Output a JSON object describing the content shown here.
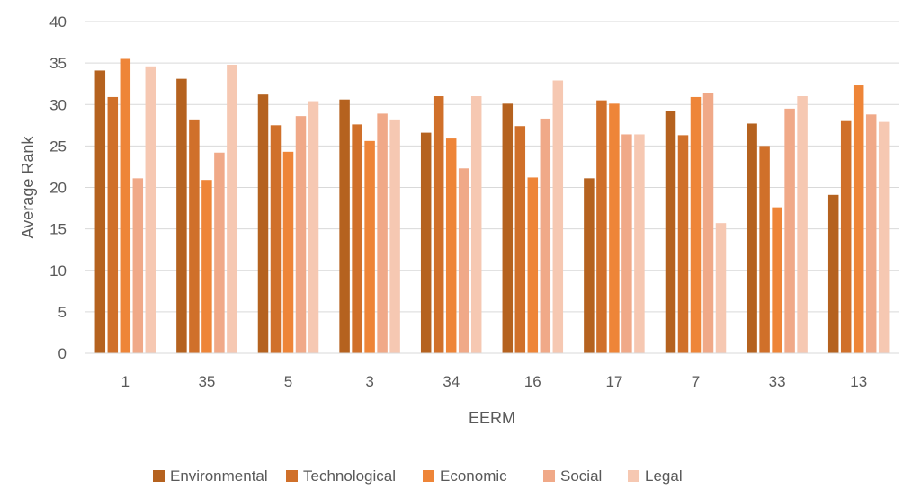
{
  "chart_data": {
    "type": "bar",
    "title": "",
    "xlabel": "EERM",
    "ylabel": "Average Rank",
    "categories": [
      "1",
      "35",
      "5",
      "3",
      "34",
      "16",
      "17",
      "7",
      "33",
      "13"
    ],
    "ylim": [
      0,
      40
    ],
    "yticks": [
      "0",
      "5",
      "10",
      "15",
      "20",
      "25",
      "30",
      "35",
      "40"
    ],
    "grid": true,
    "legend_position": "bottom",
    "series": [
      {
        "name": "Environmental",
        "color": "#B5621F",
        "values": [
          34.1,
          33.1,
          31.2,
          30.6,
          26.6,
          30.1,
          21.1,
          29.2,
          27.7,
          19.1
        ]
      },
      {
        "name": "Technological",
        "color": "#D0702A",
        "values": [
          30.9,
          28.2,
          27.5,
          27.6,
          31.0,
          27.4,
          30.5,
          26.3,
          25.0,
          28.0
        ]
      },
      {
        "name": "Economic",
        "color": "#EE8538",
        "values": [
          35.5,
          20.9,
          24.3,
          25.6,
          25.9,
          21.2,
          30.1,
          30.9,
          17.6,
          32.3
        ]
      },
      {
        "name": "Social",
        "color": "#F0A988",
        "values": [
          21.1,
          24.2,
          28.6,
          28.9,
          22.3,
          28.3,
          26.4,
          31.4,
          29.5,
          28.8
        ]
      },
      {
        "name": "Legal",
        "color": "#F6C8B2",
        "values": [
          34.6,
          34.8,
          30.4,
          28.2,
          31.0,
          32.9,
          26.4,
          15.7,
          31.0,
          27.9
        ]
      }
    ]
  }
}
